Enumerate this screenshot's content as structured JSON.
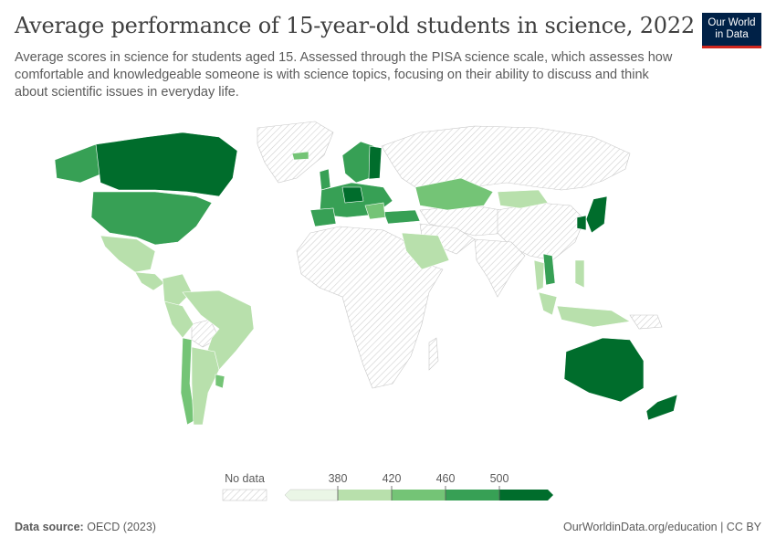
{
  "header": {
    "title": "Average performance of 15-year-old students in science, 2022",
    "subtitle": "Average scores in science for students aged 15. Assessed through the PISA science scale, which assesses how comfortable and knowledgeable someone is with science topics, focusing on their ability to discuss and think about scientific issues in everyday life.",
    "logo_line1": "Our World",
    "logo_line2": "in Data"
  },
  "legend": {
    "no_data_label": "No data",
    "thresholds": [
      "380",
      "420",
      "460",
      "500"
    ],
    "colors": [
      "#eaf6e6",
      "#b8e0ac",
      "#74c476",
      "#37a055",
      "#006d2c"
    ],
    "no_data_color": "hatched-grey"
  },
  "footer": {
    "source_label": "Data source:",
    "source_value": "OECD (2023)",
    "url": "OurWorldinData.org/education | CC BY"
  }
}
